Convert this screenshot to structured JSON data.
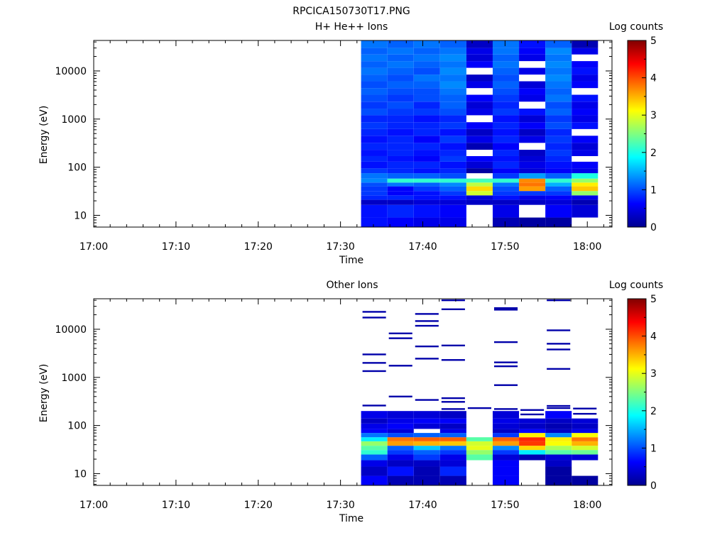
{
  "figure_title": "RPCICA150730T17.PNG",
  "colormap": {
    "name": "jet",
    "stops": [
      "#00008F",
      "#0000FF",
      "#00FFFF",
      "#FFFF00",
      "#FF0000",
      "#800000"
    ]
  },
  "chart_data": [
    {
      "type": "heatmap",
      "title": "H+ He++ Ions",
      "xlabel": "Time",
      "ylabel": "Energy (eV)",
      "x_ticks": [
        "17:00",
        "17:10",
        "17:20",
        "17:30",
        "17:40",
        "17:50",
        "18:00"
      ],
      "xlim": [
        "17:00",
        "18:03"
      ],
      "y_scale": "log",
      "y_ticks": [
        "10",
        "100",
        "1000",
        "10000"
      ],
      "ylim": [
        5.7,
        43000
      ],
      "colorbar": {
        "label": "Log counts",
        "range": [
          0,
          5
        ],
        "ticks": [
          "0",
          "1",
          "2",
          "3",
          "4",
          "5"
        ]
      },
      "sweeps": [
        {
          "t_start": "17:32.5",
          "t_end": "17:35.7"
        },
        {
          "t_start": "17:35.7",
          "t_end": "17:38.9"
        },
        {
          "t_start": "17:38.9",
          "t_end": "17:42.1"
        },
        {
          "t_start": "17:42.1",
          "t_end": "17:45.3"
        },
        {
          "t_start": "17:45.3",
          "t_end": "17:48.5"
        },
        {
          "t_start": "17:48.5",
          "t_end": "17:51.7"
        },
        {
          "t_start": "17:51.7",
          "t_end": "17:54.9"
        },
        {
          "t_start": "17:54.9",
          "t_end": "17:58.1"
        },
        {
          "t_start": "17:58.1",
          "t_end": "18:01.3"
        }
      ],
      "bands": [
        {
          "e_min": 5.7,
          "e_max": 9.0,
          "values": [
            0.7,
            0.6,
            0.5,
            0.5,
            null,
            0.2,
            0.1,
            0.1,
            null
          ]
        },
        {
          "e_min": 9.0,
          "e_max": 16.5,
          "values": [
            0.7,
            0.8,
            0.7,
            0.6,
            null,
            0.5,
            null,
            0.6,
            0.4
          ]
        },
        {
          "e_min": 16.5,
          "e_max": 21.0,
          "values": [
            0.3,
            0.3,
            0.4,
            0.4,
            0.3,
            0.3,
            0.3,
            0.4,
            0.2
          ]
        },
        {
          "e_min": 21.0,
          "e_max": 26.0,
          "values": [
            0.8,
            0.8,
            0.7,
            0.7,
            0.4,
            0.7,
            0.5,
            0.6,
            0.5
          ]
        },
        {
          "e_min": 26.0,
          "e_max": 32.0,
          "values": [
            0.9,
            0.6,
            0.7,
            0.9,
            2.9,
            0.9,
            0.9,
            0.9,
            2.6
          ]
        },
        {
          "e_min": 32.0,
          "e_max": 40.0,
          "values": [
            0.9,
            0.6,
            0.9,
            1.1,
            3.3,
            1.0,
            3.6,
            1.1,
            3.4
          ]
        },
        {
          "e_min": 40.0,
          "e_max": 48.0,
          "values": [
            1.0,
            1.2,
            1.1,
            1.3,
            2.8,
            1.2,
            3.8,
            1.5,
            3.2
          ]
        },
        {
          "e_min": 48.0,
          "e_max": 58.0,
          "values": [
            1.3,
            2.1,
            2.1,
            2.1,
            2.2,
            2.1,
            3.7,
            2.1,
            2.6
          ]
        },
        {
          "e_min": 58.0,
          "e_max": 75.0,
          "values": [
            1.2,
            1.1,
            1.1,
            1.0,
            null,
            0.9,
            1.4,
            1.1,
            2.0
          ]
        },
        {
          "e_min": 75.0,
          "e_max": 95.0,
          "values": [
            0.9,
            0.8,
            0.7,
            0.8,
            0.1,
            0.6,
            0.4,
            0.6,
            0.5
          ]
        },
        {
          "e_min": 95.0,
          "e_max": 130,
          "values": [
            0.7,
            0.8,
            0.8,
            0.7,
            0.4,
            0.8,
            0.5,
            0.7,
            0.6
          ]
        },
        {
          "e_min": 130,
          "e_max": 170,
          "values": [
            0.8,
            0.7,
            0.6,
            0.9,
            0.6,
            0.7,
            0.4,
            0.8,
            null
          ]
        },
        {
          "e_min": 170,
          "e_max": 230,
          "values": [
            0.7,
            0.8,
            0.7,
            0.8,
            null,
            0.8,
            0.3,
            0.9,
            0.5
          ]
        },
        {
          "e_min": 230,
          "e_max": 320,
          "values": [
            0.8,
            0.8,
            0.8,
            0.7,
            0.2,
            0.6,
            null,
            0.8,
            0.4
          ]
        },
        {
          "e_min": 320,
          "e_max": 450,
          "values": [
            0.7,
            0.8,
            0.6,
            0.9,
            0.5,
            0.8,
            0.5,
            0.9,
            0.6
          ]
        },
        {
          "e_min": 450,
          "e_max": 620,
          "values": [
            0.8,
            0.7,
            0.8,
            0.7,
            0.3,
            0.7,
            0.3,
            0.8,
            null
          ]
        },
        {
          "e_min": 620,
          "e_max": 860,
          "values": [
            0.9,
            0.8,
            0.8,
            0.9,
            0.6,
            0.8,
            0.6,
            1.0,
            0.7
          ]
        },
        {
          "e_min": 860,
          "e_max": 1200,
          "values": [
            0.8,
            0.8,
            0.7,
            0.8,
            null,
            0.7,
            0.4,
            0.9,
            0.5
          ]
        },
        {
          "e_min": 1200,
          "e_max": 1650,
          "values": [
            1.0,
            0.9,
            0.9,
            1.0,
            0.5,
            0.9,
            0.7,
            1.1,
            0.6
          ]
        },
        {
          "e_min": 1650,
          "e_max": 2300,
          "values": [
            0.9,
            1.0,
            0.8,
            1.1,
            0.4,
            0.8,
            null,
            1.0,
            0.5
          ]
        },
        {
          "e_min": 2300,
          "e_max": 3200,
          "values": [
            1.0,
            0.9,
            1.0,
            1.1,
            0.6,
            0.9,
            0.5,
            1.2,
            0.7
          ]
        },
        {
          "e_min": 3200,
          "e_max": 4400,
          "values": [
            1.1,
            1.0,
            1.0,
            1.2,
            null,
            1.0,
            0.6,
            1.1,
            null
          ]
        },
        {
          "e_min": 4400,
          "e_max": 6100,
          "values": [
            1.0,
            1.1,
            1.1,
            1.3,
            0.5,
            1.1,
            0.4,
            1.2,
            0.6
          ]
        },
        {
          "e_min": 6100,
          "e_max": 8400,
          "values": [
            1.1,
            1.0,
            1.2,
            1.2,
            0.3,
            1.0,
            null,
            1.3,
            0.5
          ]
        },
        {
          "e_min": 8400,
          "e_max": 11600,
          "values": [
            1.2,
            1.1,
            1.0,
            1.3,
            null,
            1.1,
            0.5,
            1.2,
            0.7
          ]
        },
        {
          "e_min": 11600,
          "e_max": 16000,
          "values": [
            1.1,
            1.2,
            1.1,
            1.2,
            0.6,
            1.2,
            null,
            1.3,
            0.6
          ]
        },
        {
          "e_min": 16000,
          "e_max": 22000,
          "values": [
            1.2,
            1.1,
            1.2,
            1.3,
            0.4,
            1.1,
            0.5,
            1.2,
            null
          ]
        },
        {
          "e_min": 22000,
          "e_max": 30000,
          "values": [
            1.1,
            1.2,
            1.1,
            1.2,
            0.5,
            1.2,
            0.6,
            1.3,
            0.5
          ]
        },
        {
          "e_min": 30000,
          "e_max": 43000,
          "values": [
            1.2,
            1.1,
            1.2,
            1.1,
            0.3,
            1.2,
            0.7,
            1.1,
            0.2
          ]
        }
      ]
    },
    {
      "type": "heatmap",
      "title": "Other Ions",
      "xlabel": "Time",
      "ylabel": "Energy (eV)",
      "x_ticks": [
        "17:00",
        "17:10",
        "17:20",
        "17:30",
        "17:40",
        "17:50",
        "18:00"
      ],
      "xlim": [
        "17:00",
        "18:03"
      ],
      "y_scale": "log",
      "y_ticks": [
        "10",
        "100",
        "1000",
        "10000"
      ],
      "ylim": [
        5.7,
        43000
      ],
      "colorbar": {
        "label": "Log counts",
        "range": [
          0,
          5
        ],
        "ticks": [
          "0",
          "1",
          "2",
          "3",
          "4",
          "5"
        ]
      },
      "sweeps": [
        {
          "t_start": "17:32.5",
          "t_end": "17:35.7"
        },
        {
          "t_start": "17:35.7",
          "t_end": "17:38.9"
        },
        {
          "t_start": "17:38.9",
          "t_end": "17:42.1"
        },
        {
          "t_start": "17:42.1",
          "t_end": "17:45.3"
        },
        {
          "t_start": "17:45.3",
          "t_end": "17:48.5"
        },
        {
          "t_start": "17:48.5",
          "t_end": "17:51.7"
        },
        {
          "t_start": "17:51.7",
          "t_end": "17:54.9"
        },
        {
          "t_start": "17:54.9",
          "t_end": "17:58.1"
        },
        {
          "t_start": "17:58.1",
          "t_end": "18:01.3"
        }
      ],
      "bands": [
        {
          "e_min": 5.7,
          "e_max": 9.0,
          "values": [
            0.6,
            0.2,
            0.2,
            0.2,
            null,
            0.6,
            null,
            0.1,
            0.1
          ]
        },
        {
          "e_min": 9.0,
          "e_max": 14.0,
          "values": [
            0.3,
            0.7,
            0.2,
            0.8,
            null,
            0.6,
            null,
            0.1,
            null
          ]
        },
        {
          "e_min": 14.0,
          "e_max": 19.0,
          "values": [
            0.5,
            0.3,
            0.3,
            0.4,
            null,
            0.6,
            null,
            0.3,
            null
          ]
        },
        {
          "e_min": 19.0,
          "e_max": 25.0,
          "values": [
            1.1,
            0.5,
            0.9,
            0.5,
            2.3,
            0.4,
            0.2,
            0.4,
            0.4
          ]
        },
        {
          "e_min": 25.0,
          "e_max": 31.0,
          "values": [
            2.1,
            0.9,
            1.1,
            0.9,
            2.6,
            0.9,
            1.8,
            2.3,
            2.4
          ]
        },
        {
          "e_min": 31.0,
          "e_max": 38.0,
          "values": [
            2.3,
            1.1,
            1.6,
            1.2,
            3.0,
            1.3,
            3.3,
            2.7,
            2.9
          ]
        },
        {
          "e_min": 38.0,
          "e_max": 47.0,
          "values": [
            2.6,
            3.6,
            3.5,
            3.4,
            2.9,
            3.6,
            4.1,
            3.1,
            3.5
          ]
        },
        {
          "e_min": 47.0,
          "e_max": 57.0,
          "values": [
            1.8,
            3.8,
            3.9,
            3.9,
            2.3,
            3.9,
            4.2,
            3.2,
            3.8
          ]
        },
        {
          "e_min": 57.0,
          "e_max": 70.0,
          "values": [
            1.2,
            1.0,
            1.1,
            1.1,
            null,
            0.9,
            3.2,
            1.3,
            3.1
          ]
        },
        {
          "e_min": 70.0,
          "e_max": 85.0,
          "values": [
            0.6,
            0.4,
            null,
            0.5,
            null,
            0.3,
            0.6,
            0.3,
            0.5
          ]
        },
        {
          "e_min": 85.0,
          "e_max": 110,
          "values": [
            0.5,
            0.6,
            0.4,
            0.3,
            null,
            0.4,
            0.3,
            0.2,
            0.3
          ]
        },
        {
          "e_min": 110,
          "e_max": 140,
          "values": [
            0.3,
            0.5,
            0.6,
            0.6,
            null,
            0.5,
            0.4,
            0.3,
            0.4
          ]
        },
        {
          "e_min": 140,
          "e_max": 200,
          "values": [
            0.5,
            0.4,
            0.4,
            0.3,
            null,
            0.4,
            null,
            0.6,
            null
          ]
        }
      ],
      "lines": [
        {
          "sweep": 0,
          "energy": 260
        },
        {
          "sweep": 0,
          "energy": 1350
        },
        {
          "sweep": 0,
          "energy": 2000
        },
        {
          "sweep": 0,
          "energy": 3000
        },
        {
          "sweep": 0,
          "energy": 17500
        },
        {
          "sweep": 0,
          "energy": 23000
        },
        {
          "sweep": 1,
          "energy": 400
        },
        {
          "sweep": 1,
          "energy": 1750
        },
        {
          "sweep": 1,
          "energy": 6500
        },
        {
          "sweep": 1,
          "energy": 8200
        },
        {
          "sweep": 2,
          "energy": 340
        },
        {
          "sweep": 2,
          "energy": 2450
        },
        {
          "sweep": 2,
          "energy": 4400
        },
        {
          "sweep": 2,
          "energy": 11800
        },
        {
          "sweep": 2,
          "energy": 14800
        },
        {
          "sweep": 2,
          "energy": 20800
        },
        {
          "sweep": 3,
          "energy": 220
        },
        {
          "sweep": 3,
          "energy": 310
        },
        {
          "sweep": 3,
          "energy": 370
        },
        {
          "sweep": 3,
          "energy": 2300
        },
        {
          "sweep": 3,
          "energy": 4600
        },
        {
          "sweep": 3,
          "energy": 26000
        },
        {
          "sweep": 3,
          "energy": 40000
        },
        {
          "sweep": 4,
          "energy": 230
        },
        {
          "sweep": 5,
          "energy": 220
        },
        {
          "sweep": 5,
          "energy": 690
        },
        {
          "sweep": 5,
          "energy": 1700
        },
        {
          "sweep": 5,
          "energy": 2050
        },
        {
          "sweep": 5,
          "energy": 5400
        },
        {
          "sweep": 5,
          "energy": 25500
        },
        {
          "sweep": 5,
          "energy": 27500
        },
        {
          "sweep": 6,
          "energy": 170
        },
        {
          "sweep": 6,
          "energy": 210
        },
        {
          "sweep": 7,
          "energy": 230
        },
        {
          "sweep": 7,
          "energy": 255
        },
        {
          "sweep": 7,
          "energy": 1500
        },
        {
          "sweep": 7,
          "energy": 3800
        },
        {
          "sweep": 7,
          "energy": 5000
        },
        {
          "sweep": 7,
          "energy": 9500
        },
        {
          "sweep": 7,
          "energy": 40000
        },
        {
          "sweep": 8,
          "energy": 175
        },
        {
          "sweep": 8,
          "energy": 225
        }
      ]
    }
  ]
}
